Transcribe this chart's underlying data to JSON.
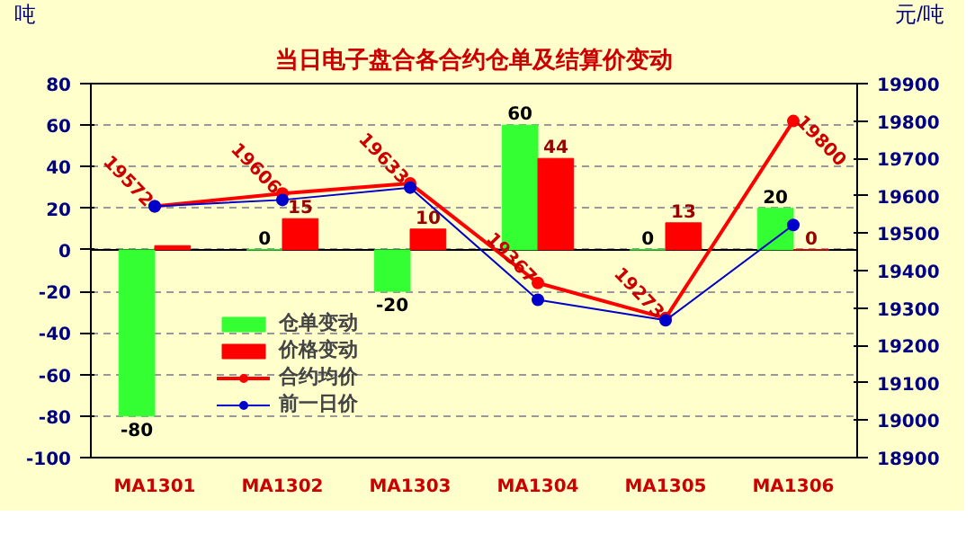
{
  "chart_data": {
    "type": "bar",
    "title": "当日电子盘合各合约仓单及结算价变动",
    "ylabel": "吨",
    "y2label": "元/吨",
    "categories": [
      "MA1301",
      "MA1302",
      "MA1303",
      "MA1304",
      "MA1305",
      "MA1306"
    ],
    "series": [
      {
        "name": "仓单变动",
        "color": "#33ff33",
        "values": [
          -80,
          0,
          -20,
          60,
          0,
          20
        ],
        "value_labels": [
          "-80",
          "0",
          "-20",
          "60",
          "0",
          "20"
        ]
      },
      {
        "name": "价格变动",
        "color": "#ff0000",
        "values": [
          2,
          15,
          10,
          44,
          13,
          0
        ],
        "value_labels": [
          null,
          "15",
          "10",
          "44",
          "13",
          "0"
        ]
      },
      {
        "name": "合约均价",
        "type": "line",
        "axis": "y2",
        "color": "#ff0000",
        "marker": "circle",
        "values": [
          19572,
          19606,
          19633,
          19367,
          19273,
          19800
        ],
        "value_labels": [
          "19572",
          "19606",
          "19633",
          "19367",
          "19273",
          "19800"
        ]
      },
      {
        "name": "前一日价",
        "type": "line",
        "axis": "y2",
        "color": "#0000cc",
        "marker": "circle",
        "values": [
          19572,
          19589,
          19622,
          19322,
          19267,
          19522
        ]
      }
    ],
    "ylim": [
      -100,
      80
    ],
    "yticks": [
      -100,
      -80,
      -60,
      -40,
      -20,
      0,
      20,
      40,
      60,
      80
    ],
    "y2lim": [
      18900,
      19900
    ],
    "y2ticks": [
      18900,
      19000,
      19100,
      19200,
      19300,
      19400,
      19500,
      19600,
      19700,
      19800,
      19900
    ],
    "grid": "y",
    "legend": "bottom left"
  }
}
